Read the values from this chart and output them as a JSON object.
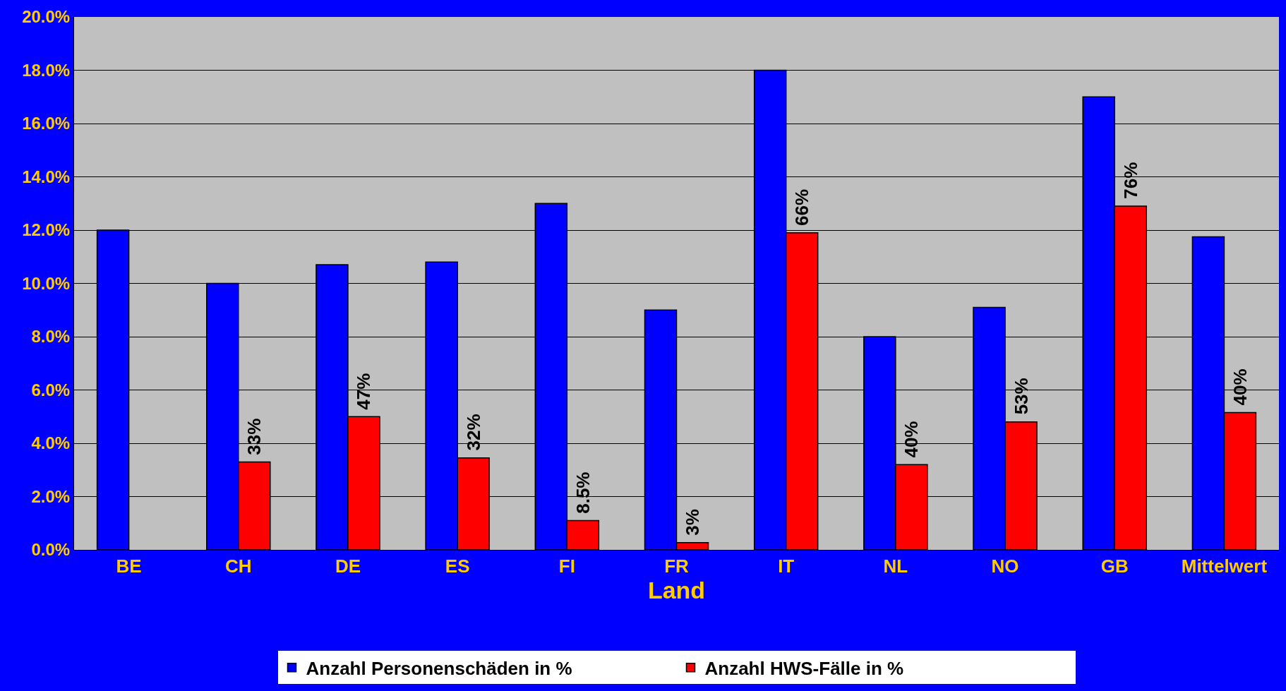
{
  "chart_data": {
    "type": "bar",
    "xlabel": "Land",
    "categories": [
      "BE",
      "CH",
      "DE",
      "ES",
      "FI",
      "FR",
      "IT",
      "NL",
      "NO",
      "GB",
      "Mittelwert"
    ],
    "series": [
      {
        "name": "Anzahl Personenschäden in %",
        "color": "#0000ff",
        "values": [
          12.0,
          10.0,
          10.7,
          10.8,
          13.0,
          9.0,
          18.0,
          8.0,
          9.1,
          17.0,
          11.75
        ]
      },
      {
        "name": "Anzahl HWS-Fälle in %",
        "color": "#ff0000",
        "values": [
          null,
          3.3,
          5.0,
          3.45,
          1.1,
          0.27,
          11.9,
          3.2,
          4.8,
          12.9,
          5.15
        ]
      }
    ],
    "annotations": [
      {
        "text": "33%",
        "x": "CH",
        "y": 3.3
      },
      {
        "text": "47%",
        "x": "DE",
        "y": 5.0
      },
      {
        "text": "32%",
        "x": "ES",
        "y": 3.45
      },
      {
        "text": "8.5%",
        "x": "FI",
        "y": 1.1
      },
      {
        "text": "3%",
        "x": "FR",
        "y": 0.27
      },
      {
        "text": "66%",
        "x": "IT",
        "y": 11.9
      },
      {
        "text": "40%",
        "x": "NL",
        "y": 3.2
      },
      {
        "text": "53%",
        "x": "NO",
        "y": 4.8
      },
      {
        "text": "76%",
        "x": "GB",
        "y": 12.9
      },
      {
        "text": "40%",
        "x": "Mittelwert",
        "y": 5.15
      }
    ],
    "ylim": [
      0,
      20
    ],
    "yticks": [
      {
        "value": 0,
        "label": "0.0%"
      },
      {
        "value": 2,
        "label": "2.0%"
      },
      {
        "value": 4,
        "label": "4.0%"
      },
      {
        "value": 6,
        "label": "6.0%"
      },
      {
        "value": 8,
        "label": "8.0%"
      },
      {
        "value": 10,
        "label": "10.0%"
      },
      {
        "value": 12,
        "label": "12.0%"
      },
      {
        "value": 14,
        "label": "14.0%"
      },
      {
        "value": 16,
        "label": "16.0%"
      },
      {
        "value": 18,
        "label": "18.0%"
      },
      {
        "value": 20,
        "label": "20.0%"
      }
    ],
    "grid": "y",
    "legend": "bottom"
  }
}
